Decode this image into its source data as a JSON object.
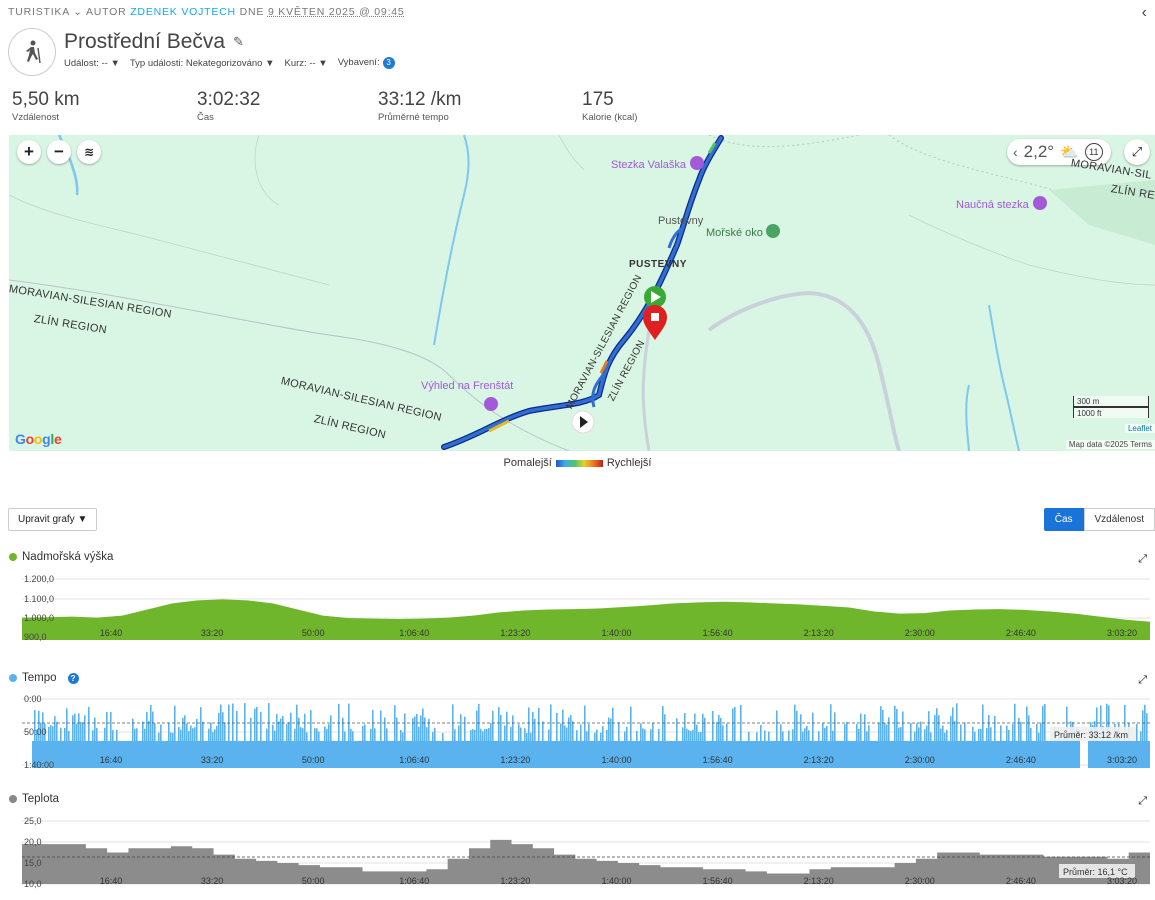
{
  "breadcrumb": {
    "category": "TURISTIKA",
    "category_arrow": "⌄",
    "author_prefix": "AUTOR",
    "author": "ZDENEK VOJTECH",
    "date_prefix": "DNE",
    "date": "9 KVĚTEN 2025 @ 09:45"
  },
  "activity": {
    "title": "Prostřední Bečva",
    "meta": {
      "event_label": "Událost:",
      "event_value": "--",
      "type_label": "Typ události:",
      "type_value": "Nekategorizováno",
      "course_label": "Kurz:",
      "course_value": "--",
      "gear_label": "Vybavení:",
      "gear_count": "3"
    }
  },
  "stats": [
    {
      "value": "5,50 km",
      "label": "Vzdálenost"
    },
    {
      "value": "3:02:32",
      "label": "Čas"
    },
    {
      "value": "33:12 /km",
      "label": "Průměrné tempo"
    },
    {
      "value": "175",
      "label": "Kalorie (kcal)"
    }
  ],
  "map": {
    "temperature": "2,2°",
    "wind": "11",
    "scale_metric": "300 m",
    "scale_imperial": "1000 ft",
    "attribution_leaflet": "Leaflet",
    "attribution_data": "Map data ©2025",
    "attribution_terms": "Terms",
    "google": "Google",
    "labels": {
      "stezka_valaska": "Stezka Valaška",
      "naucna_stezka": "Naučná stezka",
      "pustevny_small": "Pustevny",
      "morske_oko": "Mořské oko",
      "pustevny": "PUSTEVNY",
      "vyhled": "Výhled na Frenštát",
      "region_ms_1": "MORAVIAN-SILESIAN REGION",
      "region_zl_1": "ZLÍN REGION",
      "region_ms_2": "MORAVIAN-SILESIAN REGION",
      "region_zl_2": "ZLÍN REGION",
      "region_ms_3": "MORAVIAN-SILESIAN REGION",
      "region_zl_3": "ZLÍN REGION",
      "region_ms_4": "MORAVIAN-SIL",
      "region_zl_4": "ZLÍN RE",
      "region_ms_5": "MORAVIAN-SILESIAN",
      "region_zl_5": "ZLÍN REGION"
    },
    "colors": {
      "background": "#d9f5e3",
      "track": "#2f6fcf",
      "start": "#3aa935",
      "end": "#e02020"
    }
  },
  "legend": {
    "slower": "Pomalejší",
    "faster": "Rychlejší"
  },
  "controls": {
    "edit_charts": "Upravit grafy ▼",
    "toggle_time": "Čas",
    "toggle_distance": "Vzdálenost"
  },
  "x_ticks": [
    "16:40",
    "33:20",
    "50:00",
    "1:06:40",
    "1:23:20",
    "1:40:00",
    "1:56:40",
    "2:13:20",
    "2:30:00",
    "2:46:40",
    "3:03:20"
  ],
  "charts": {
    "elevation": {
      "title": "Nadmořská výška",
      "color": "#6fb62c",
      "y_ticks": [
        "1.200,0",
        "1.100,0",
        "1.000,0",
        "900,0"
      ],
      "ylim": [
        900,
        1200
      ],
      "values": [
        1010,
        1012,
        1015,
        1010,
        1020,
        1050,
        1080,
        1095,
        1100,
        1095,
        1080,
        1050,
        1020,
        1008,
        1005,
        1003,
        1005,
        1010,
        1020,
        1035,
        1045,
        1050,
        1052,
        1055,
        1062,
        1070,
        1080,
        1085,
        1088,
        1085,
        1080,
        1075,
        1068,
        1060,
        1040,
        1030,
        1032,
        1045,
        1050,
        1052,
        1048,
        1040,
        1030,
        1015,
        1000,
        990
      ]
    },
    "pace": {
      "title": "Tempo",
      "help": "?",
      "color": "#5ab3ef",
      "y_ticks": [
        "0:00",
        "50:00",
        "1:40:00"
      ],
      "average": "Průměr: 33:12 /km"
    },
    "temperature": {
      "title": "Teplota",
      "color": "#888888",
      "y_ticks": [
        "25,0",
        "20,0",
        "15,0",
        "10,0"
      ],
      "ylim": [
        10,
        25
      ],
      "values": [
        19.5,
        19.5,
        19.5,
        18.5,
        17.5,
        18.5,
        18.5,
        19,
        18.5,
        17,
        16,
        15.5,
        15,
        14.5,
        14,
        14,
        13,
        13,
        13,
        13.5,
        16,
        18.5,
        20.5,
        19.5,
        18.5,
        17,
        16,
        15.5,
        15,
        14.5,
        14,
        14,
        13.5,
        13.5,
        13,
        12.5,
        12.5,
        13.5,
        14,
        14,
        14,
        15,
        16,
        17.5,
        17.5,
        17,
        17,
        17,
        16.5,
        16.5,
        16.5,
        16,
        17.5,
        17.5
      ],
      "average": "Průměr: 16,1 °C"
    }
  }
}
